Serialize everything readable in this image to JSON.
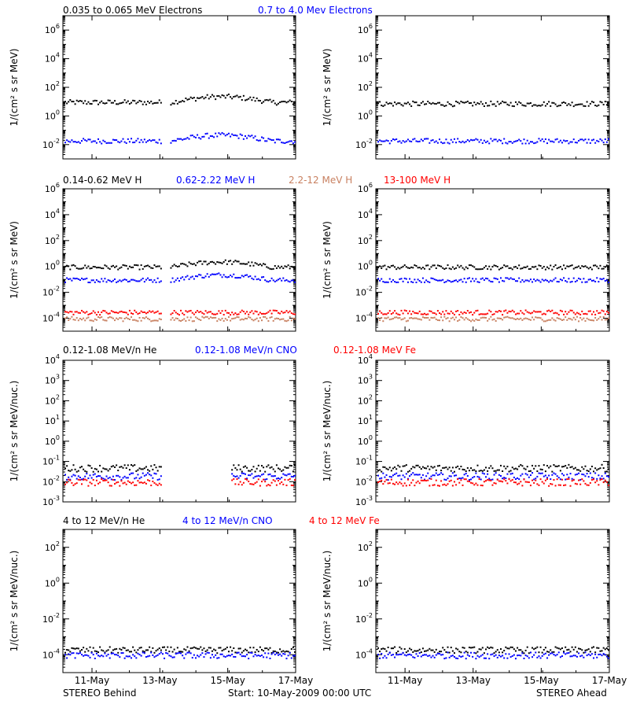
{
  "colors": {
    "black": "#000000",
    "blue": "#0000ff",
    "red": "#ff0000",
    "tan": "#c88060"
  },
  "footer": {
    "left": "STEREO Behind",
    "center": "Start: 10-May-2009 00:00 UTC",
    "right": "STEREO Ahead"
  },
  "xticks": [
    "11-May",
    "13-May",
    "15-May",
    "17-May"
  ],
  "chart_data": [
    {
      "type": "scatter",
      "row": 1,
      "ylabel": "1/(cm² s sr MeV)",
      "log_y": true,
      "ylim_exp": [
        -3,
        7
      ],
      "yticks_exp": [
        -2,
        0,
        2,
        4,
        6
      ],
      "legend": [
        {
          "label": "0.035 to 0.065 MeV Electrons",
          "color": "#000000"
        },
        {
          "label": "0.7 to 4.0 Mev Electrons",
          "color": "#0000ff"
        }
      ],
      "series": [
        {
          "name": "0.035 to 0.065 MeV Electrons",
          "spacecraft": "STEREO Behind",
          "color": "#000000",
          "log10_value": 1.0
        },
        {
          "name": "0.7 to 4.0 Mev Electrons",
          "spacecraft": "STEREO Behind",
          "color": "#0000ff",
          "log10_value": -1.7
        },
        {
          "name": "0.035 to 0.065 MeV Electrons",
          "spacecraft": "STEREO Ahead",
          "color": "#000000",
          "log10_value": 0.9
        },
        {
          "name": "0.7 to 4.0 Mev Electrons",
          "spacecraft": "STEREO Ahead",
          "color": "#0000ff",
          "log10_value": -1.7
        }
      ]
    },
    {
      "type": "scatter",
      "row": 2,
      "ylabel": "1/(cm² s sr MeV)",
      "log_y": true,
      "ylim_exp": [
        -5,
        6
      ],
      "yticks_exp": [
        -4,
        -2,
        0,
        2,
        4,
        6
      ],
      "legend": [
        {
          "label": "0.14-0.62 MeV H",
          "color": "#000000"
        },
        {
          "label": "0.62-2.22 MeV H",
          "color": "#0000ff"
        },
        {
          "label": "2.2-12 MeV H",
          "color": "#c88060"
        },
        {
          "label": "13-100 MeV H",
          "color": "#ff0000"
        }
      ],
      "series": [
        {
          "name": "0.14-0.62 MeV H",
          "spacecraft": "STEREO Behind",
          "color": "#000000",
          "log10_value": 0.0
        },
        {
          "name": "0.62-2.22 MeV H",
          "spacecraft": "STEREO Behind",
          "color": "#0000ff",
          "log10_value": -1.0
        },
        {
          "name": "2.2-12 MeV H",
          "spacecraft": "STEREO Behind",
          "color": "#c88060",
          "log10_value": -4.0
        },
        {
          "name": "13-100 MeV H",
          "spacecraft": "STEREO Behind",
          "color": "#ff0000",
          "log10_value": -3.5
        },
        {
          "name": "0.14-0.62 MeV H",
          "spacecraft": "STEREO Ahead",
          "color": "#000000",
          "log10_value": 0.0
        },
        {
          "name": "0.62-2.22 MeV H",
          "spacecraft": "STEREO Ahead",
          "color": "#0000ff",
          "log10_value": -1.0
        },
        {
          "name": "2.2-12 MeV H",
          "spacecraft": "STEREO Ahead",
          "color": "#c88060",
          "log10_value": -4.0
        },
        {
          "name": "13-100 MeV H",
          "spacecraft": "STEREO Ahead",
          "color": "#ff0000",
          "log10_value": -3.5
        }
      ]
    },
    {
      "type": "scatter",
      "row": 3,
      "ylabel": "1/(cm² s sr MeV/nuc.)",
      "log_y": true,
      "ylim_exp": [
        -3,
        4
      ],
      "yticks_exp": [
        -3,
        -2,
        -1,
        0,
        1,
        2,
        3,
        4
      ],
      "legend": [
        {
          "label": "0.12-1.08 MeV/n He",
          "color": "#000000"
        },
        {
          "label": "0.12-1.08 MeV/n CNO",
          "color": "#0000ff"
        },
        {
          "label": "0.12-1.08 MeV Fe",
          "color": "#ff0000"
        }
      ],
      "series": [
        {
          "name": "0.12-1.08 MeV/n He",
          "spacecraft": "STEREO Behind",
          "color": "#000000",
          "log10_value": -1.3
        },
        {
          "name": "0.12-1.08 MeV/n CNO",
          "spacecraft": "STEREO Behind",
          "color": "#0000ff",
          "log10_value": -1.7
        },
        {
          "name": "0.12-1.08 MeV Fe",
          "spacecraft": "STEREO Behind",
          "color": "#ff0000",
          "log10_value": -2.0
        },
        {
          "name": "0.12-1.08 MeV/n He",
          "spacecraft": "STEREO Ahead",
          "color": "#000000",
          "log10_value": -1.3
        },
        {
          "name": "0.12-1.08 MeV/n CNO",
          "spacecraft": "STEREO Ahead",
          "color": "#0000ff",
          "log10_value": -1.7
        },
        {
          "name": "0.12-1.08 MeV Fe",
          "spacecraft": "STEREO Ahead",
          "color": "#ff0000",
          "log10_value": -2.0
        }
      ]
    },
    {
      "type": "scatter",
      "row": 4,
      "ylabel": "1/(cm² s sr MeV/nuc.)",
      "log_y": true,
      "ylim_exp": [
        -5,
        3
      ],
      "yticks_exp": [
        -4,
        -2,
        0,
        2
      ],
      "legend": [
        {
          "label": "4 to 12 MeV/n He",
          "color": "#000000"
        },
        {
          "label": "4 to 12 MeV/n CNO",
          "color": "#0000ff"
        },
        {
          "label": "4 to 12 MeV Fe",
          "color": "#ff0000"
        }
      ],
      "series": [
        {
          "name": "4 to 12 MeV/n He",
          "spacecraft": "STEREO Behind",
          "color": "#000000",
          "log10_value": -3.7
        },
        {
          "name": "4 to 12 MeV/n CNO",
          "spacecraft": "STEREO Behind",
          "color": "#0000ff",
          "log10_value": -4.0
        },
        {
          "name": "4 to 12 MeV/n He",
          "spacecraft": "STEREO Ahead",
          "color": "#000000",
          "log10_value": -3.7
        },
        {
          "name": "4 to 12 MeV/n CNO",
          "spacecraft": "STEREO Ahead",
          "color": "#0000ff",
          "log10_value": -4.0
        }
      ]
    }
  ]
}
